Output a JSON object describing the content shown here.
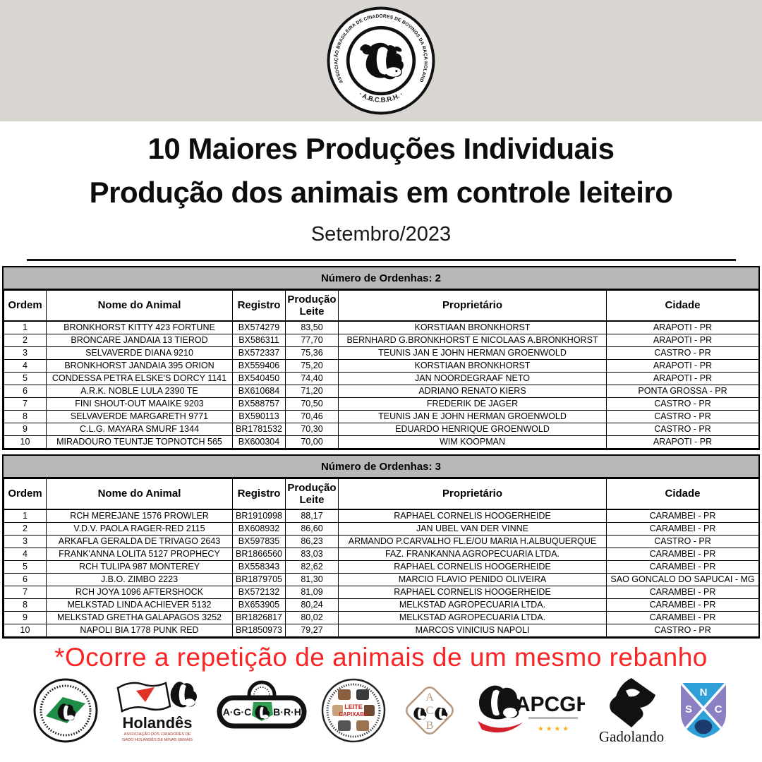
{
  "header": {
    "logo": {
      "arc_text_top": "ASSOCIAÇÃO BRASILEIRA DE CRIADORES DE BOVINOS DA RAÇA HOLANDESA",
      "arc_text_bottom": "· A.B.C.B.R.H. ·"
    },
    "title_line1": "10 Maiores Produções Individuais",
    "title_line2": "Produção dos animais em controle leiteiro",
    "subtitle": "Setembro/2023"
  },
  "tables": [
    {
      "section_title": "Número de Ordenhas: 2",
      "columns": [
        "Ordem",
        "Nome do Animal",
        "Registro",
        "Produção Leite",
        "Proprietário",
        "Cidade"
      ],
      "col_keys": [
        "ordem",
        "nome",
        "registro",
        "producao",
        "proprietario",
        "cidade"
      ],
      "rows": [
        [
          "1",
          "BRONKHORST KITTY 423 FORTUNE",
          "BX574279",
          "83,50",
          "KORSTIAAN BRONKHORST",
          "ARAPOTI - PR"
        ],
        [
          "2",
          "BRONCARE JANDAIA 13 TIEROD",
          "BX586311",
          "77,70",
          "BERNHARD G.BRONKHORST E NICOLAAS A.BRONKHORST",
          "ARAPOTI - PR"
        ],
        [
          "3",
          "SELVAVERDE DIANA 9210",
          "BX572337",
          "75,36",
          "TEUNIS JAN E JOHN HERMAN GROENWOLD",
          "CASTRO - PR"
        ],
        [
          "4",
          "BRONKHORST JANDAIA 395 ORION",
          "BX559406",
          "75,20",
          "KORSTIAAN BRONKHORST",
          "ARAPOTI - PR"
        ],
        [
          "5",
          "CONDESSA PETRA ELSKE'S DORCY 1141",
          "BX540450",
          "74,40",
          "JAN NOORDEGRAAF NETO",
          "ARAPOTI - PR"
        ],
        [
          "6",
          "A.R.K. NOBLE LULA 2390 TE",
          "BX610684",
          "71,20",
          "ADRIANO RENATO KIERS",
          "PONTA GROSSA - PR"
        ],
        [
          "7",
          "FINI SHOUT-OUT MAAIKE 9203",
          "BX588757",
          "70,50",
          "FREDERIK DE JAGER",
          "CASTRO - PR"
        ],
        [
          "8",
          "SELVAVERDE MARGARETH 9771",
          "BX590113",
          "70,46",
          "TEUNIS JAN E JOHN HERMAN GROENWOLD",
          "CASTRO - PR"
        ],
        [
          "9",
          "C.L.G. MAYARA SMURF 1344",
          "BR1781532",
          "70,30",
          "EDUARDO HENRIQUE GROENWOLD",
          "CASTRO - PR"
        ],
        [
          "10",
          "MIRADOURO TEUNTJE TOPNOTCH 565",
          "BX600304",
          "70,00",
          "WIM KOOPMAN",
          "ARAPOTI - PR"
        ]
      ]
    },
    {
      "section_title": "Número de Ordenhas: 3",
      "columns": [
        "Ordem",
        "Nome do Animal",
        "Registro",
        "Produção Leite",
        "Proprietário",
        "Cidade"
      ],
      "col_keys": [
        "ordem",
        "nome",
        "registro",
        "producao",
        "proprietario",
        "cidade"
      ],
      "rows": [
        [
          "1",
          "RCH MEREJANE 1576 PROWLER",
          "BR1910998",
          "88,17",
          "RAPHAEL CORNELIS HOOGERHEIDE",
          "CARAMBEI - PR"
        ],
        [
          "2",
          "V.D.V. PAOLA RAGER-RED 2115",
          "BX608932",
          "86,60",
          "JAN UBEL VAN DER VINNE",
          "CARAMBEI - PR"
        ],
        [
          "3",
          "ARKAFLA GERALDA DE TRIVAGO 2643",
          "BX597835",
          "86,23",
          "ARMANDO P.CARVALHO FL.E/OU MARIA H.ALBUQUERQUE",
          "CASTRO - PR"
        ],
        [
          "4",
          "FRANK'ANNA LOLITA 5127 PROPHECY",
          "BR1866560",
          "83,03",
          "FAZ. FRANKANNA AGROPECUARIA LTDA.",
          "CARAMBEI - PR"
        ],
        [
          "5",
          "RCH TULIPA 987 MONTEREY",
          "BX558343",
          "82,62",
          "RAPHAEL CORNELIS HOOGERHEIDE",
          "CARAMBEI - PR"
        ],
        [
          "6",
          "J.B.O. ZIMBO 2223",
          "BR1879705",
          "81,30",
          "MARCIO FLAVIO PENIDO OLIVEIRA",
          "SAO GONCALO DO SAPUCAI - MG"
        ],
        [
          "7",
          "RCH JOYA 1096 AFTERSHOCK",
          "BX572132",
          "81,09",
          "RAPHAEL CORNELIS HOOGERHEIDE",
          "CARAMBEI - PR"
        ],
        [
          "8",
          "MELKSTAD LINDA ACHIEVER 5132",
          "BX653905",
          "80,24",
          "MELKSTAD AGROPECUARIA LTDA.",
          "CARAMBEI - PR"
        ],
        [
          "9",
          "MELKSTAD GRETHA GALAPAGOS 3252",
          "BR1826817",
          "80,02",
          "MELKSTAD AGROPECUARIA LTDA.",
          "CARAMBEI - PR"
        ],
        [
          "10",
          "NAPOLI BIA 1778 PUNK RED",
          "BR1850973",
          "79,27",
          "MARCOS VINICIUS NAPOLI",
          "CASTRO - PR"
        ]
      ]
    }
  ],
  "note": {
    "text": "*Ocorre a repetição de animais de um mesmo rebanho"
  },
  "footer_logos": [
    {
      "id": "apcbrh-parana"
    },
    {
      "id": "holandes-minas",
      "title": "Holandês",
      "caption_line1": "ASSOCIAÇÃO DOS CRIADORES DE",
      "caption_line2": "GADO HOLANDÊS DE MINAS GERAIS"
    },
    {
      "id": "agcbrh",
      "left_text": "A·G·C",
      "right_text": "B·R·H"
    },
    {
      "id": "leite-capixaba",
      "line1": "LEITE",
      "line2": "CAPIXABA"
    },
    {
      "id": "acgb",
      "letter_a": "A",
      "letter_c": "C",
      "letter_b": "B"
    },
    {
      "id": "apcgh",
      "title": "APCGH",
      "stars": "★ ★ ★ ★"
    },
    {
      "id": "gadolando",
      "title": "Gadolando"
    },
    {
      "id": "nsc",
      "letter_n": "N",
      "letter_s": "S",
      "letter_c": "C"
    }
  ],
  "colors": {
    "top_band_gray": "#d9d6d1",
    "section_band_gray": "#b8b8b8",
    "note_red": "#fa2424",
    "flag_green": "#1e8e47",
    "minas_red": "#e23127",
    "apcgh_red": "#d3222a",
    "star_gold": "#f0b42b",
    "nsc_blue": "#2f9fd8",
    "nsc_purple": "#8b80c2",
    "border_black": "#000000"
  }
}
